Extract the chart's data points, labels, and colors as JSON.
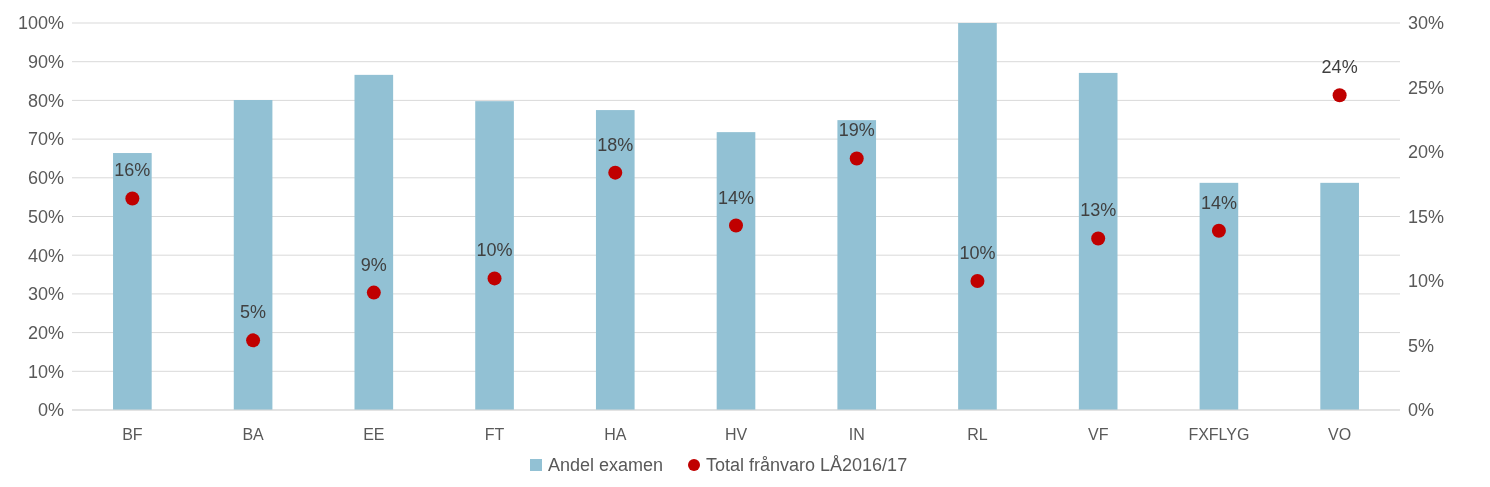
{
  "chart_data": {
    "type": "bar",
    "categories": [
      "BF",
      "BA",
      "EE",
      "FT",
      "HA",
      "HV",
      "IN",
      "RL",
      "VF",
      "FXFLYG",
      "VO"
    ],
    "series": [
      {
        "name": "Andel examen",
        "color": "#92c1d4",
        "values": [
          66.4,
          80.1,
          86.6,
          79.8,
          77.5,
          71.8,
          74.9,
          100,
          87.1,
          58.7,
          58.7
        ]
      },
      {
        "name": "Total frånvaro LÅ2016/17",
        "type": "scatter",
        "axis": "y2",
        "color": "#c00000",
        "values": [
          16.4,
          5.4,
          9.1,
          10.2,
          18.4,
          14.3,
          19.5,
          10.0,
          13.3,
          13.9,
          24.4
        ],
        "value_labels": [
          "16%",
          "5%",
          "9%",
          "10%",
          "18%",
          "14%",
          "19%",
          "10%",
          "13%",
          "14%",
          "24%"
        ]
      }
    ],
    "ylim": [
      0,
      100
    ],
    "yticks": [
      {
        "value": 0,
        "label": "0%"
      },
      {
        "value": 10,
        "label": "10%"
      },
      {
        "value": 20,
        "label": "20%"
      },
      {
        "value": 30,
        "label": "30%"
      },
      {
        "value": 40,
        "label": "40%"
      },
      {
        "value": 50,
        "label": "50%"
      },
      {
        "value": 60,
        "label": "60%"
      },
      {
        "value": 70,
        "label": "70%"
      },
      {
        "value": 80,
        "label": "80%"
      },
      {
        "value": 90,
        "label": "90%"
      },
      {
        "value": 100,
        "label": "100%"
      }
    ],
    "y2lim": [
      0,
      30
    ],
    "y2ticks": [
      {
        "value": 0,
        "label": "0%"
      },
      {
        "value": 5,
        "label": "5%"
      },
      {
        "value": 10,
        "label": "10%"
      },
      {
        "value": 15,
        "label": "15%"
      },
      {
        "value": 20,
        "label": "20%"
      },
      {
        "value": 25,
        "label": "25%"
      },
      {
        "value": 30,
        "label": "30%"
      }
    ],
    "grid": "y",
    "legend": "bottom",
    "marker": "circle"
  }
}
